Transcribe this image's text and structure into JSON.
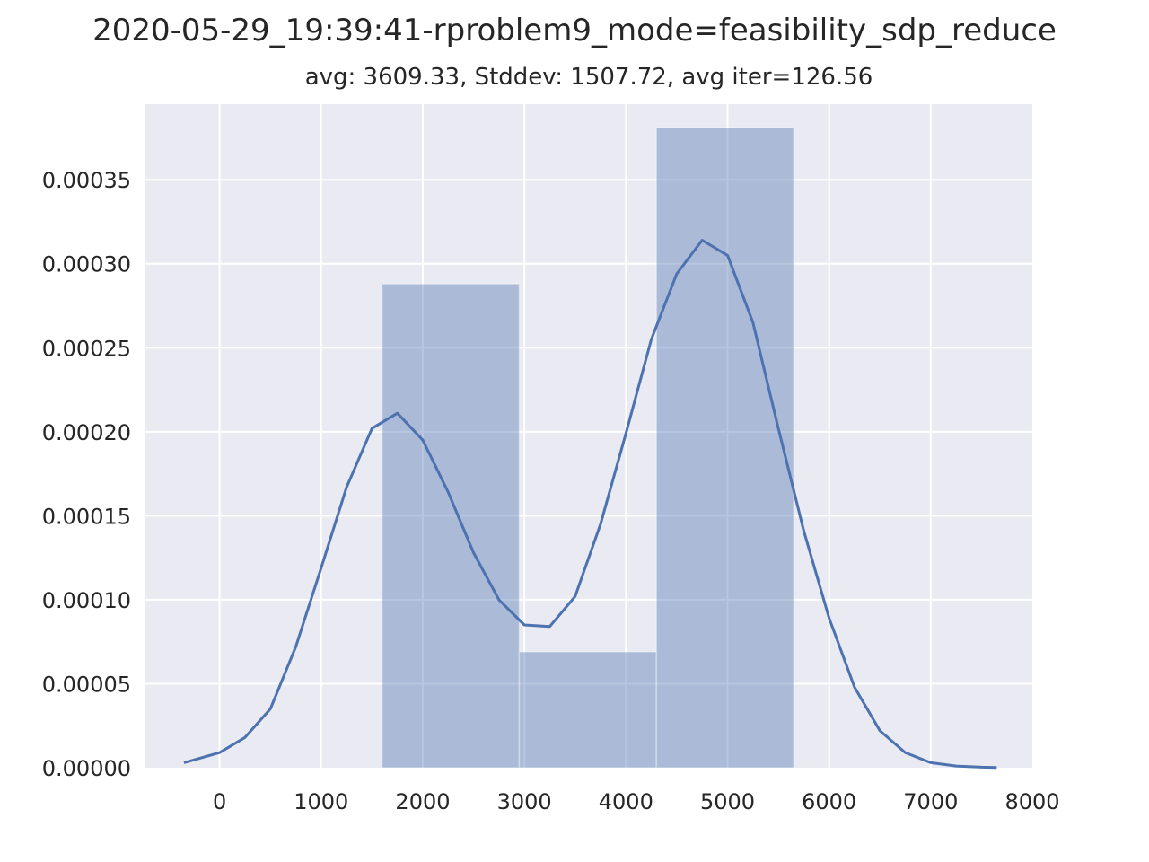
{
  "chart_data": {
    "type": "histogram with density curve",
    "title": "2020-05-29_19:39:41-rproblem9_mode=feasibility_sdp_reduce",
    "subtitle": "avg: 3609.33, Stddev: 1507.72, avg iter=126.56",
    "xlabel": "",
    "ylabel": "",
    "xlim": [
      -730,
      8000
    ],
    "ylim": [
      0,
      0.000395
    ],
    "grid": true,
    "x_ticks": [
      "0",
      "1000",
      "2000",
      "3000",
      "4000",
      "5000",
      "6000",
      "7000",
      "8000"
    ],
    "y_ticks": [
      "0.00000",
      "0.00005",
      "0.00010",
      "0.00015",
      "0.00020",
      "0.00025",
      "0.00030",
      "0.00035"
    ],
    "histogram": {
      "bins": [
        {
          "x0": 1600,
          "x1": 2950,
          "density": 0.000288
        },
        {
          "x0": 2950,
          "x1": 4300,
          "density": 6.9e-05
        },
        {
          "x0": 4300,
          "x1": 5650,
          "density": 0.000381
        }
      ],
      "color": "#4c72b0",
      "alpha": 0.4
    },
    "density_curve": {
      "color": "#4c72b0",
      "x": [
        -350,
        0,
        250,
        500,
        750,
        1000,
        1250,
        1500,
        1750,
        2000,
        2250,
        2500,
        2750,
        3000,
        3250,
        3500,
        3750,
        4000,
        4250,
        4500,
        4750,
        5000,
        5250,
        5500,
        5750,
        6000,
        6250,
        6500,
        6750,
        7000,
        7250,
        7500,
        7650
      ],
      "y": [
        3e-06,
        9e-06,
        1.8e-05,
        3.5e-05,
        7.2e-05,
        0.000119,
        0.000167,
        0.000202,
        0.000211,
        0.000195,
        0.000164,
        0.000128,
        0.0001,
        8.5e-05,
        8.4e-05,
        0.000102,
        0.000145,
        0.000199,
        0.000255,
        0.000294,
        0.000314,
        0.000305,
        0.000265,
        0.000202,
        0.000141,
        8.9e-05,
        4.8e-05,
        2.2e-05,
        9e-06,
        3e-06,
        1e-06,
        3e-07,
        1e-07
      ]
    }
  },
  "colors": {
    "plot_background": "#eaeaf2",
    "grid": "#ffffff",
    "text": "#262626"
  }
}
